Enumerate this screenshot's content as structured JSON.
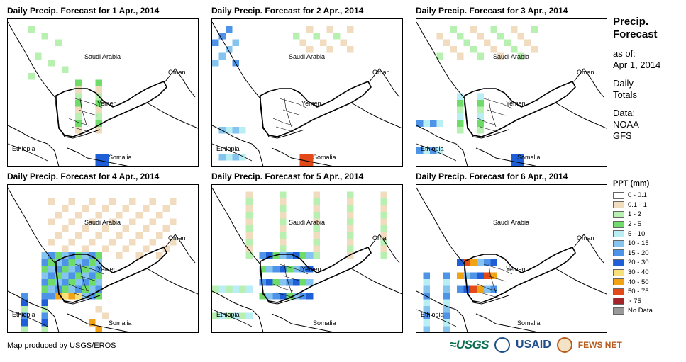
{
  "panels": [
    {
      "title": "Daily Precip. Forecast for 1 Apr., 2014"
    },
    {
      "title": "Daily Precip. Forecast for 2 Apr., 2014"
    },
    {
      "title": "Daily Precip. Forecast for 3 Apr., 2014"
    },
    {
      "title": "Daily Precip. Forecast for 4 Apr., 2014"
    },
    {
      "title": "Daily Precip. Forecast for 5 Apr., 2014"
    },
    {
      "title": "Daily Precip. Forecast for 6 Apr., 2014"
    }
  ],
  "map_labels": {
    "saudi": "Saudi Arabia",
    "oman": "Oman",
    "yemen": "Yemen",
    "ethiopia": "Ethiopia",
    "somalia": "Somalia"
  },
  "side": {
    "title_line1": "Precip.",
    "title_line2": "Forecast",
    "asof_line1": "as of:",
    "asof_line2": "Apr 1, 2014",
    "totals_line1": "Daily",
    "totals_line2": "Totals",
    "data_line1": "Data:",
    "data_line2": "NOAA-",
    "data_line3": "GFS"
  },
  "legend": {
    "title": "PPT (mm)",
    "items": [
      {
        "label": "0 - 0.1",
        "color": "#ffffff"
      },
      {
        "label": "0.1 - 1",
        "color": "#f1dcc0"
      },
      {
        "label": "1 - 2",
        "color": "#b7f0b0"
      },
      {
        "label": "2 - 5",
        "color": "#6fdc6a"
      },
      {
        "label": "5 - 10",
        "color": "#b9eef5"
      },
      {
        "label": "10 - 15",
        "color": "#86c4f0"
      },
      {
        "label": "15 - 20",
        "color": "#4d94e8"
      },
      {
        "label": "20 - 30",
        "color": "#1e5fd8"
      },
      {
        "label": "30 - 40",
        "color": "#f7e07a"
      },
      {
        "label": "40 - 50",
        "color": "#f2a215"
      },
      {
        "label": "50 - 75",
        "color": "#e24a1a"
      },
      {
        "label": "> 75",
        "color": "#a3242a"
      },
      {
        "label": "No Data",
        "color": "#999999"
      }
    ]
  },
  "footer": {
    "credit": "Map produced by USGS/EROS"
  },
  "logos": {
    "usgs": "≈USGS",
    "usaid": "USAID",
    "fews": "FEWS NET"
  }
}
